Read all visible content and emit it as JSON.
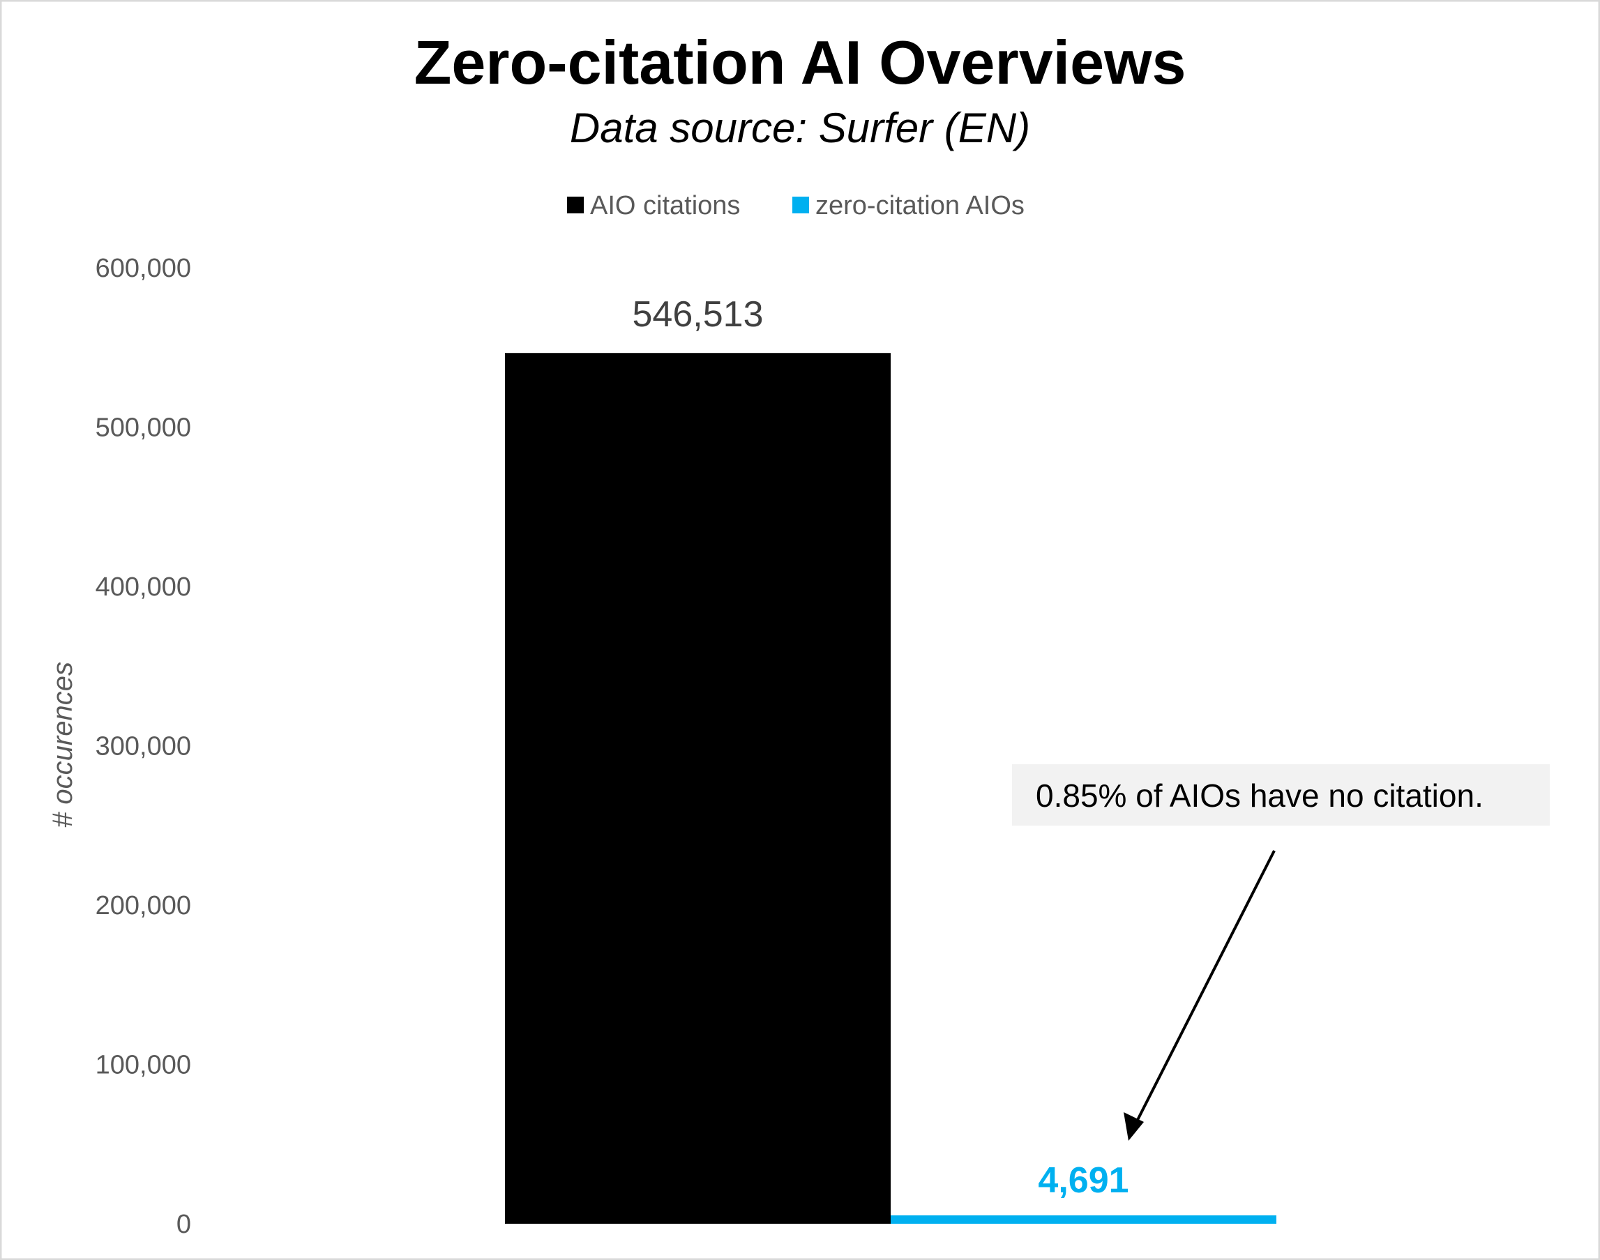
{
  "chart_data": {
    "type": "bar",
    "title": "Zero-citation AI Overviews",
    "subtitle": "Data source: Surfer (EN)",
    "xlabel": "",
    "ylabel": "# occurences",
    "ylim": [
      0,
      600000
    ],
    "yticks": [
      0,
      100000,
      200000,
      300000,
      400000,
      500000,
      600000
    ],
    "ytick_labels": [
      "0",
      "100,000",
      "200,000",
      "300,000",
      "400,000",
      "500,000",
      "600,000"
    ],
    "grid": false,
    "legend_position": "top",
    "series": [
      {
        "name": "AIO citations",
        "values": [
          546513
        ],
        "label": "546,513",
        "color": "#000000"
      },
      {
        "name": "zero-citation AIOs",
        "values": [
          4691
        ],
        "label": "4,691",
        "color": "#00B0F0"
      }
    ],
    "annotation": "0.85% of AIOs have no citation."
  }
}
